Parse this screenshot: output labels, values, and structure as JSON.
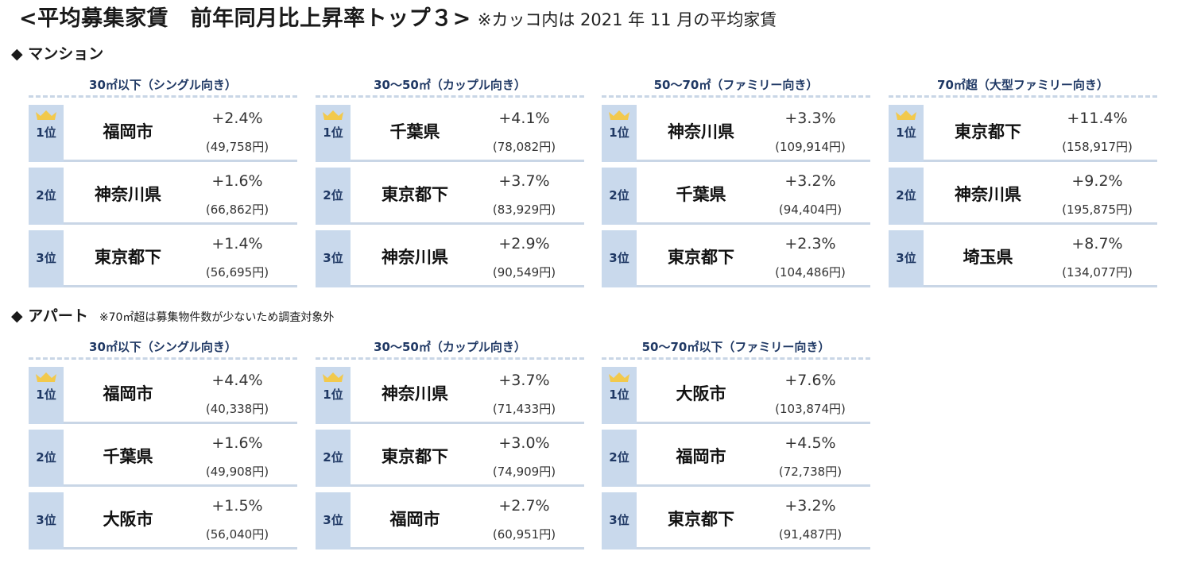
{
  "title": {
    "main": "<平均募集家賃　前年同月比上昇率トップ３>",
    "note": "※カッコ内は 2021 年 11 月の平均家賃"
  },
  "icons": {
    "bullet": "black-diamond-icon",
    "crown": "crown-icon",
    "crown_color": "#f2c94c"
  },
  "colors": {
    "rank_bg": "#c9d9ec",
    "header_text": "#1f3864",
    "divider": "#c9d6e6"
  },
  "sections": [
    {
      "label": "◆ マンション",
      "sub": "",
      "panels": [
        {
          "header": "30㎡以下（シングル向き）",
          "rows": [
            {
              "rank": "1位",
              "city": "福岡市",
              "rate": "+2.4%",
              "rent": "(49,758円)",
              "crown": true
            },
            {
              "rank": "2位",
              "city": "神奈川県",
              "rate": "+1.6%",
              "rent": "(66,862円)",
              "crown": false
            },
            {
              "rank": "3位",
              "city": "東京都下",
              "rate": "+1.4%",
              "rent": "(56,695円)",
              "crown": false
            }
          ]
        },
        {
          "header": "30～50㎡（カップル向き）",
          "rows": [
            {
              "rank": "1位",
              "city": "千葉県",
              "rate": "+4.1%",
              "rent": "(78,082円)",
              "crown": true
            },
            {
              "rank": "2位",
              "city": "東京都下",
              "rate": "+3.7%",
              "rent": "(83,929円)",
              "crown": false
            },
            {
              "rank": "3位",
              "city": "神奈川県",
              "rate": "+2.9%",
              "rent": "(90,549円)",
              "crown": false
            }
          ]
        },
        {
          "header": "50～70㎡（ファミリー向き）",
          "rows": [
            {
              "rank": "1位",
              "city": "神奈川県",
              "rate": "+3.3%",
              "rent": "(109,914円)",
              "crown": true
            },
            {
              "rank": "2位",
              "city": "千葉県",
              "rate": "+3.2%",
              "rent": "(94,404円)",
              "crown": false
            },
            {
              "rank": "3位",
              "city": "東京都下",
              "rate": "+2.3%",
              "rent": "(104,486円)",
              "crown": false
            }
          ]
        },
        {
          "header": "70㎡超（大型ファミリー向き）",
          "rows": [
            {
              "rank": "1位",
              "city": "東京都下",
              "rate": "+11.4%",
              "rent": "(158,917円)",
              "crown": true
            },
            {
              "rank": "2位",
              "city": "神奈川県",
              "rate": "+9.2%",
              "rent": "(195,875円)",
              "crown": false
            },
            {
              "rank": "3位",
              "city": "埼玉県",
              "rate": "+8.7%",
              "rent": "(134,077円)",
              "crown": false
            }
          ]
        }
      ]
    },
    {
      "label": "◆ アパート",
      "sub": "※70㎡超は募集物件数が少ないため調査対象外",
      "panels": [
        {
          "header": "30㎡以下（シングル向き）",
          "rows": [
            {
              "rank": "1位",
              "city": "福岡市",
              "rate": "+4.4%",
              "rent": "(40,338円)",
              "crown": true
            },
            {
              "rank": "2位",
              "city": "千葉県",
              "rate": "+1.6%",
              "rent": "(49,908円)",
              "crown": false
            },
            {
              "rank": "3位",
              "city": "大阪市",
              "rate": "+1.5%",
              "rent": "(56,040円)",
              "crown": false
            }
          ]
        },
        {
          "header": "30～50㎡（カップル向き）",
          "rows": [
            {
              "rank": "1位",
              "city": "神奈川県",
              "rate": "+3.7%",
              "rent": "(71,433円)",
              "crown": true
            },
            {
              "rank": "2位",
              "city": "東京都下",
              "rate": "+3.0%",
              "rent": "(74,909円)",
              "crown": false
            },
            {
              "rank": "3位",
              "city": "福岡市",
              "rate": "+2.7%",
              "rent": "(60,951円)",
              "crown": false
            }
          ]
        },
        {
          "header": "50～70㎡以下（ファミリー向き）",
          "rows": [
            {
              "rank": "1位",
              "city": "大阪市",
              "rate": "+7.6%",
              "rent": "(103,874円)",
              "crown": true
            },
            {
              "rank": "2位",
              "city": "福岡市",
              "rate": "+4.5%",
              "rent": "(72,738円)",
              "crown": false
            },
            {
              "rank": "3位",
              "city": "東京都下",
              "rate": "+3.2%",
              "rent": "(91,487円)",
              "crown": false
            }
          ]
        }
      ]
    }
  ]
}
